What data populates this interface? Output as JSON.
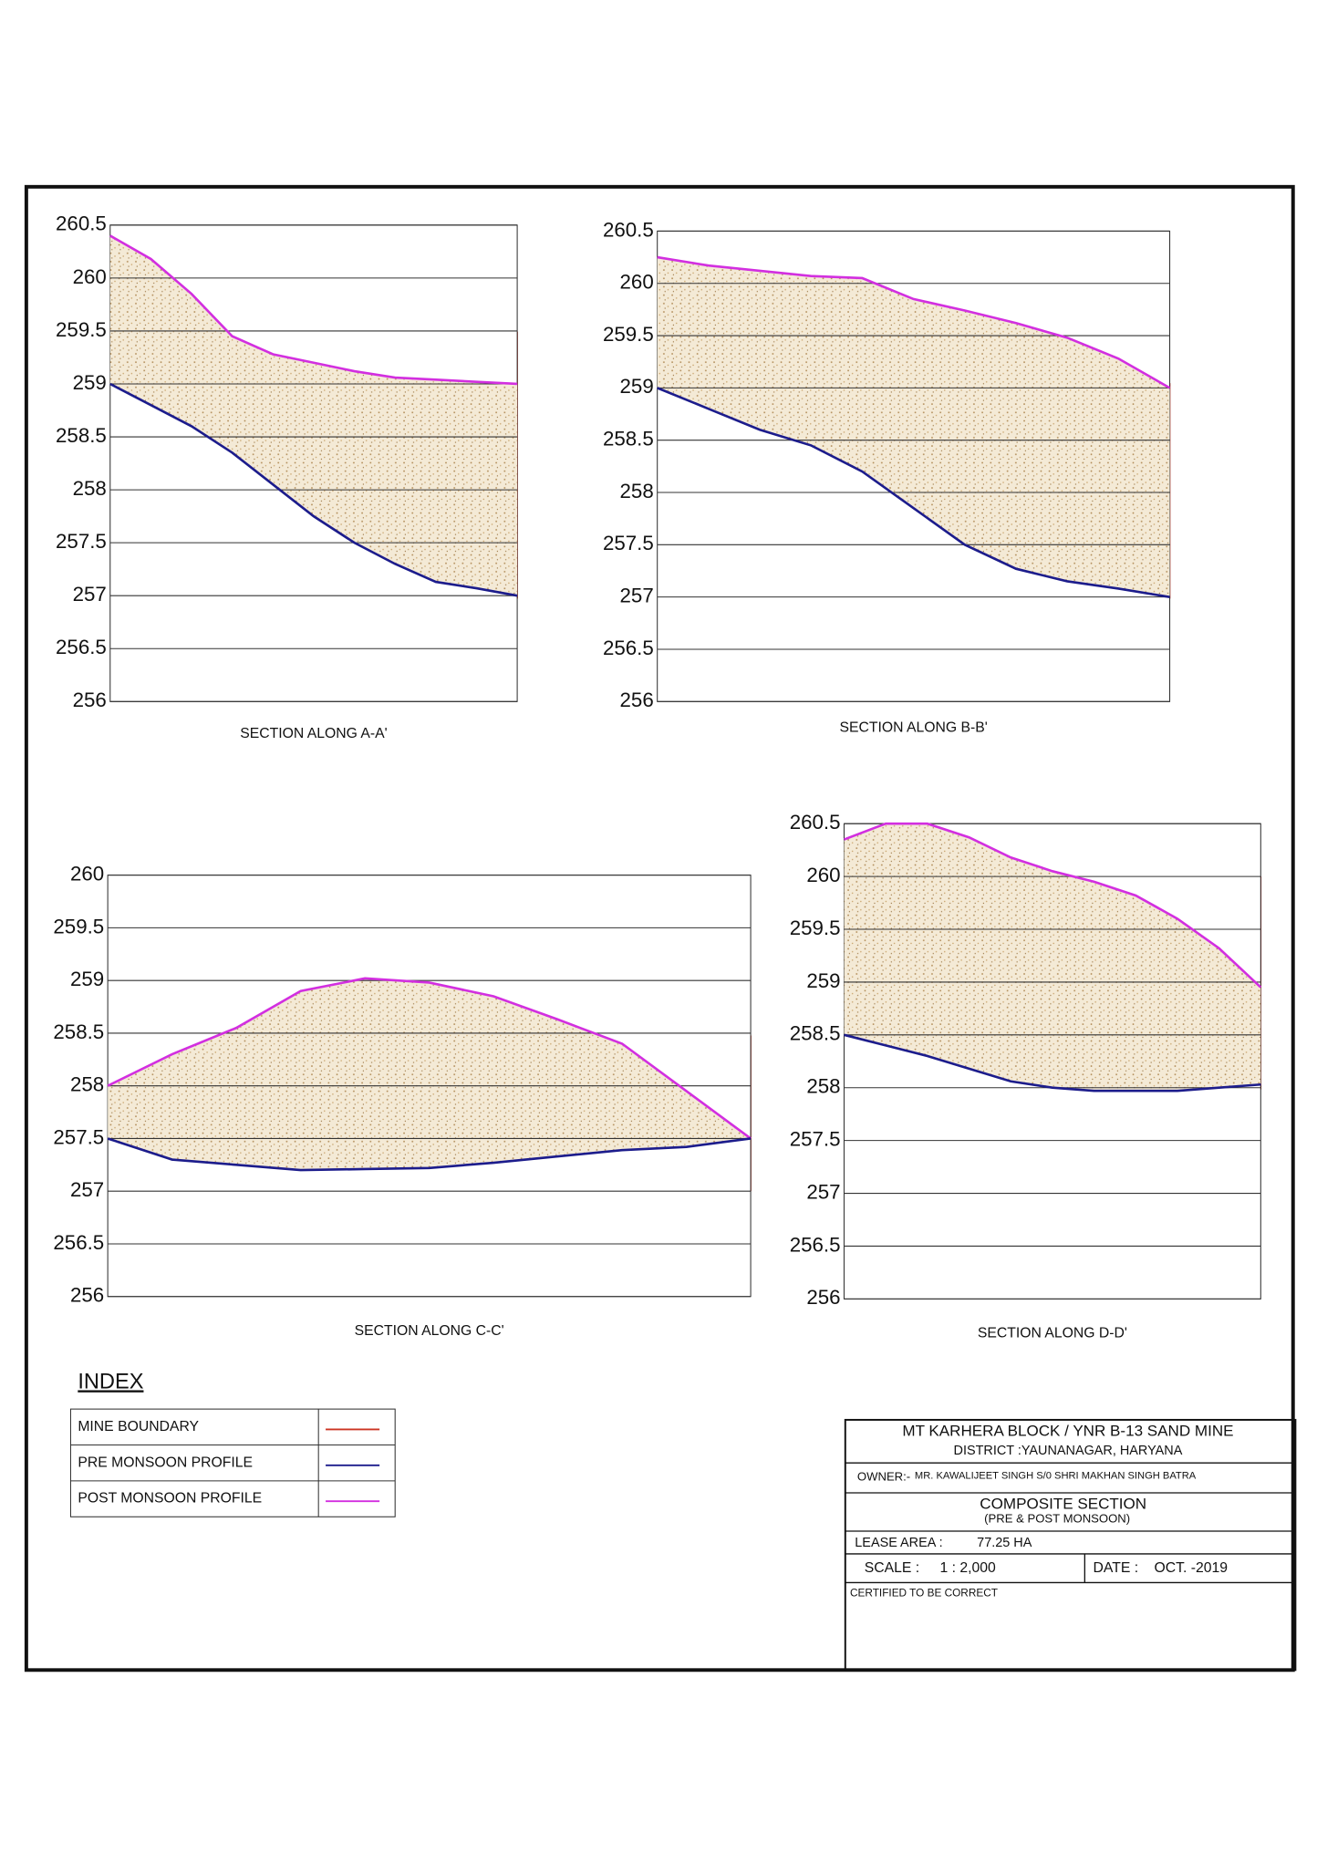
{
  "chart_data": [
    {
      "type": "line",
      "title": "SECTION ALONG A-A'",
      "fill_between": true,
      "categories": [
        null,
        null,
        null,
        null,
        null,
        null,
        null,
        null,
        null,
        null,
        null
      ],
      "ylim": [
        256,
        260.5
      ],
      "yticks": [
        256,
        256.5,
        257,
        257.5,
        258,
        258.5,
        259,
        259.5,
        260,
        260.5
      ],
      "grid": true,
      "series": [
        {
          "color": "#d22fe0",
          "values": [
            260.4,
            260.18,
            259.85,
            259.45,
            259.28,
            259.2,
            259.12,
            259.06,
            259.04,
            259.02,
            259.0
          ]
        },
        {
          "color": "#1c1c8c",
          "values": [
            259.0,
            258.8,
            258.6,
            258.35,
            258.05,
            257.75,
            257.5,
            257.3,
            257.13,
            257.07,
            257.0
          ]
        }
      ]
    },
    {
      "type": "line",
      "title": "SECTION ALONG B-B'",
      "fill_between": true,
      "categories": [
        null,
        null,
        null,
        null,
        null,
        null,
        null,
        null,
        null,
        null,
        null
      ],
      "ylim": [
        256,
        260.5
      ],
      "yticks": [
        256,
        256.5,
        257,
        257.5,
        258,
        258.5,
        259,
        259.5,
        260,
        260.5
      ],
      "grid": true,
      "series": [
        {
          "color": "#d22fe0",
          "values": [
            260.25,
            260.17,
            260.12,
            260.07,
            260.05,
            259.85,
            259.74,
            259.62,
            259.48,
            259.28,
            259.0
          ]
        },
        {
          "color": "#1c1c8c",
          "values": [
            259.0,
            258.8,
            258.6,
            258.45,
            258.2,
            257.85,
            257.5,
            257.27,
            257.15,
            257.08,
            257.0
          ]
        }
      ]
    },
    {
      "type": "line",
      "title": "SECTION ALONG C-C'",
      "fill_between": true,
      "categories": [
        null,
        null,
        null,
        null,
        null,
        null,
        null,
        null,
        null,
        null,
        null
      ],
      "ylim": [
        256,
        260
      ],
      "yticks": [
        256,
        256.5,
        257,
        257.5,
        258,
        258.5,
        259,
        259.5,
        260
      ],
      "grid": true,
      "series": [
        {
          "color": "#d22fe0",
          "values": [
            258.0,
            258.3,
            258.55,
            258.9,
            259.02,
            258.98,
            258.85,
            258.63,
            258.4,
            257.95,
            257.5
          ]
        },
        {
          "color": "#1c1c8c",
          "values": [
            257.5,
            257.3,
            257.25,
            257.2,
            257.21,
            257.22,
            257.27,
            257.33,
            257.39,
            257.42,
            257.5
          ]
        }
      ]
    },
    {
      "type": "line",
      "title": "SECTION ALONG D-D'",
      "fill_between": true,
      "categories": [
        null,
        null,
        null,
        null,
        null,
        null,
        null,
        null,
        null,
        null,
        null
      ],
      "ylim": [
        256,
        260.5
      ],
      "yticks": [
        256,
        256.5,
        257,
        257.5,
        258,
        258.5,
        259,
        259.5,
        260,
        260.5
      ],
      "grid": true,
      "series": [
        {
          "color": "#d22fe0",
          "values": [
            260.35,
            260.5,
            260.5,
            260.37,
            260.18,
            260.05,
            259.95,
            259.82,
            259.6,
            259.32,
            258.95
          ]
        },
        {
          "color": "#1c1c8c",
          "values": [
            258.5,
            258.4,
            258.3,
            258.18,
            258.06,
            258.0,
            257.97,
            257.97,
            257.97,
            258.0,
            258.03
          ]
        }
      ]
    }
  ],
  "index": {
    "title": "INDEX",
    "items": [
      {
        "label": "MINE BOUNDARY",
        "color": "#cc3322"
      },
      {
        "label": "PRE MONSOON PROFILE",
        "color": "#1c1c8c"
      },
      {
        "label": "POST MONSOON PROFILE",
        "color": "#d22fe0"
      }
    ]
  },
  "title_block": {
    "name": "MT KARHERA BLOCK / YNR B-13  SAND MINE",
    "district": "DISTRICT :YAUNANAGAR, HARYANA",
    "owner_label": "OWNER:-",
    "owner": "MR. KAWALIJEET SINGH S/0 SHRI MAKHAN SINGH BATRA",
    "section_title": "COMPOSITE SECTION",
    "section_subtitle": "(PRE & POST MONSOON)",
    "lease_area_label": "LEASE AREA :",
    "lease_area": "77.25  HA",
    "scale_label": "SCALE :",
    "scale": "1 : 2,000",
    "date_label": "DATE :",
    "date": "OCT. -2019",
    "certified": "CERTIFIED TO BE CORRECT"
  }
}
